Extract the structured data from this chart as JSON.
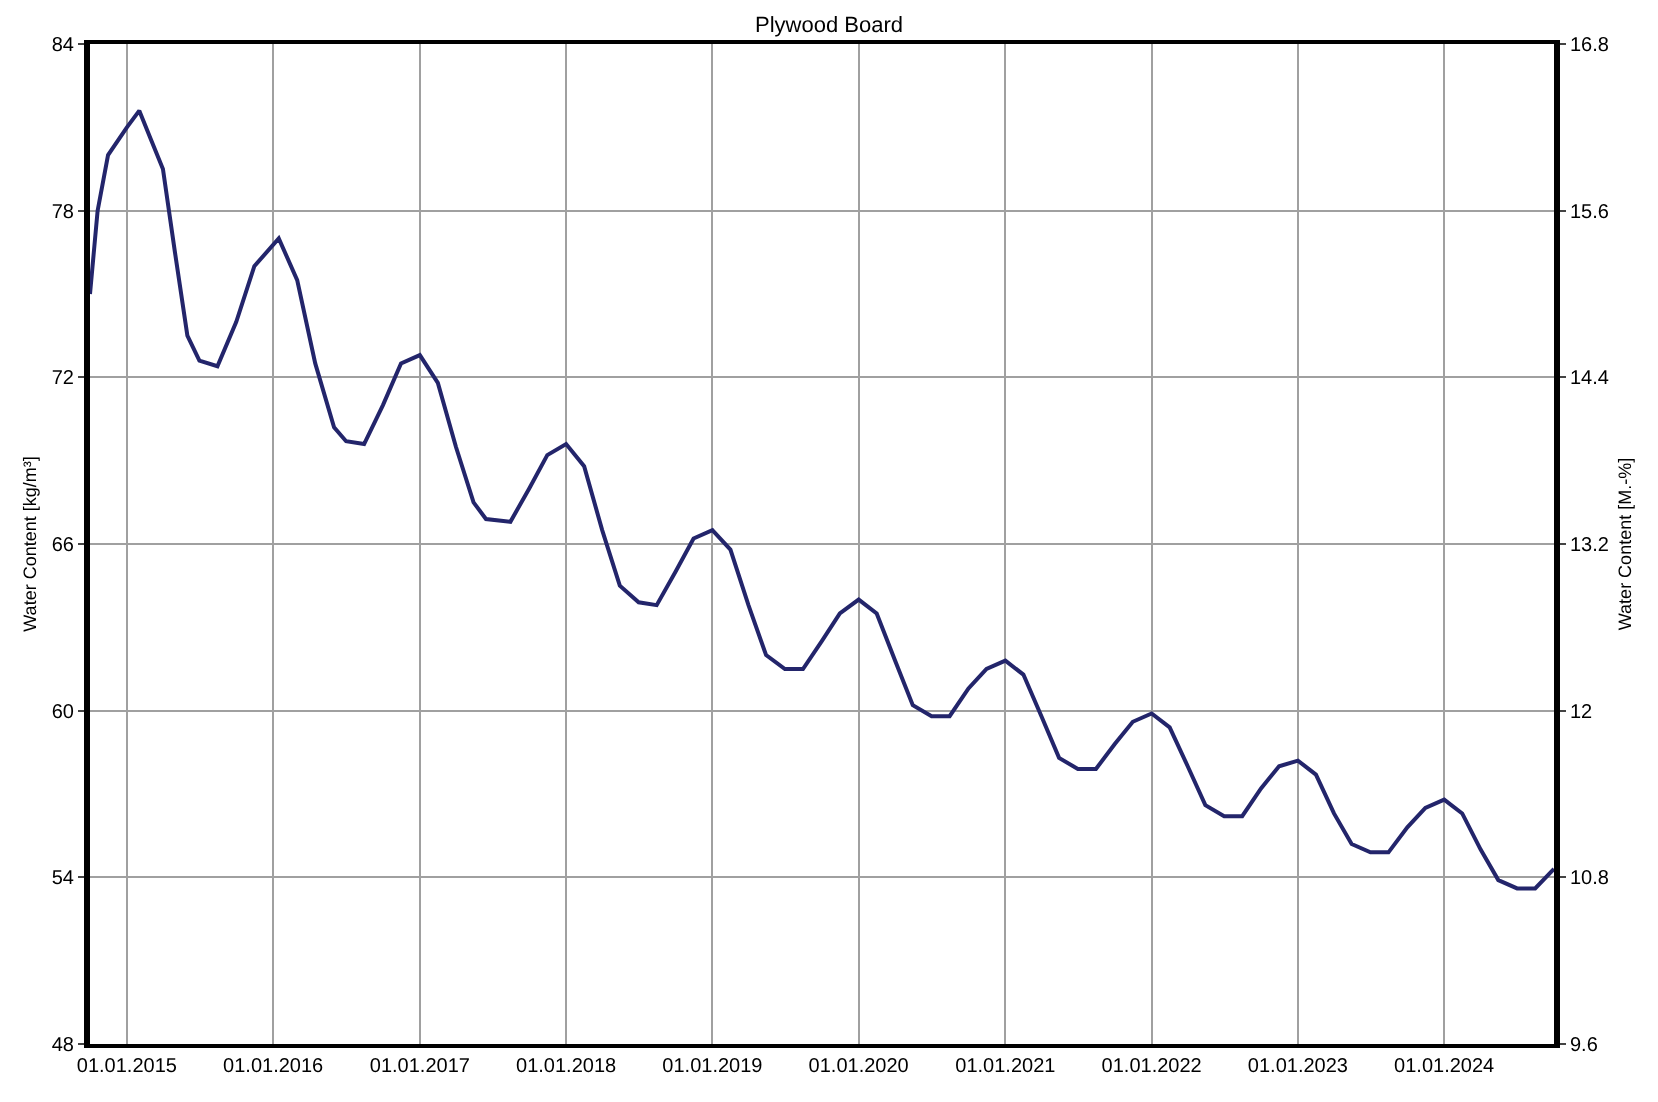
{
  "chart_data": {
    "type": "line",
    "title": "Plywood Board",
    "ylabel": "Water Content [kg/m³]",
    "y2label": "Water Content [M.-%]",
    "xlim": [
      "2014-10-01",
      "2024-10-01"
    ],
    "xticks": [
      {
        "value": "2015-01-01",
        "label": "01.01.2015"
      },
      {
        "value": "2016-01-01",
        "label": "01.01.2016"
      },
      {
        "value": "2017-01-01",
        "label": "01.01.2017"
      },
      {
        "value": "2018-01-01",
        "label": "01.01.2018"
      },
      {
        "value": "2019-01-01",
        "label": "01.01.2019"
      },
      {
        "value": "2020-01-01",
        "label": "01.01.2020"
      },
      {
        "value": "2021-01-01",
        "label": "01.01.2021"
      },
      {
        "value": "2022-01-01",
        "label": "01.01.2022"
      },
      {
        "value": "2023-01-01",
        "label": "01.01.2023"
      },
      {
        "value": "2024-01-01",
        "label": "01.01.2024"
      }
    ],
    "ylim": [
      48,
      84
    ],
    "yticks": [
      48,
      54,
      60,
      66,
      72,
      78,
      84
    ],
    "y2lim": [
      9.6,
      16.8
    ],
    "y2ticks": [
      9.6,
      10.8,
      12,
      13.2,
      14.4,
      15.6,
      16.8
    ],
    "grid": true,
    "marker": "none",
    "line_style": "solid",
    "x": [
      "2014-10-01",
      "2014-10-20",
      "2014-11-15",
      "2015-01-01",
      "2015-02-01",
      "2015-03-01",
      "2015-04-01",
      "2015-05-01",
      "2015-06-01",
      "2015-07-01",
      "2015-08-15",
      "2015-10-01",
      "2015-11-15",
      "2016-01-15",
      "2016-03-01",
      "2016-04-15",
      "2016-06-01",
      "2016-07-01",
      "2016-08-15",
      "2016-10-01",
      "2016-11-15",
      "2017-01-01",
      "2017-02-15",
      "2017-04-01",
      "2017-05-15",
      "2017-06-15",
      "2017-08-15",
      "2017-10-01",
      "2017-11-15",
      "2018-01-01",
      "2018-02-15",
      "2018-04-01",
      "2018-05-15",
      "2018-07-01",
      "2018-08-15",
      "2018-10-01",
      "2018-11-15",
      "2019-01-01",
      "2019-02-15",
      "2019-04-01",
      "2019-05-15",
      "2019-07-01",
      "2019-08-15",
      "2019-10-01",
      "2019-11-15",
      "2020-01-01",
      "2020-02-15",
      "2020-04-01",
      "2020-05-15",
      "2020-07-01",
      "2020-08-15",
      "2020-10-01",
      "2020-11-15",
      "2021-01-01",
      "2021-02-15",
      "2021-04-01",
      "2021-05-15",
      "2021-07-01",
      "2021-08-15",
      "2021-10-01",
      "2021-11-15",
      "2022-01-01",
      "2022-02-15",
      "2022-04-01",
      "2022-05-15",
      "2022-07-01",
      "2022-08-15",
      "2022-10-01",
      "2022-11-15",
      "2023-01-01",
      "2023-02-15",
      "2023-04-01",
      "2023-05-15",
      "2023-07-01",
      "2023-08-15",
      "2023-10-01",
      "2023-11-15",
      "2024-01-01",
      "2024-02-15",
      "2024-04-01",
      "2024-05-15",
      "2024-07-01",
      "2024-08-15",
      "2024-10-01"
    ],
    "series": [
      {
        "color": "#23256b",
        "values": [
          75.0,
          78.0,
          80.0,
          81.0,
          81.6,
          80.6,
          79.5,
          76.5,
          73.5,
          72.6,
          72.4,
          74.0,
          76.0,
          77.0,
          75.5,
          72.5,
          70.2,
          69.7,
          69.6,
          71.0,
          72.5,
          72.8,
          71.8,
          69.5,
          67.5,
          66.9,
          66.8,
          68.0,
          69.2,
          69.6,
          68.8,
          66.5,
          64.5,
          63.9,
          63.8,
          65.0,
          66.2,
          66.5,
          65.8,
          63.8,
          62.0,
          61.5,
          61.5,
          62.5,
          63.5,
          64.0,
          63.5,
          61.8,
          60.2,
          59.8,
          59.8,
          60.8,
          61.5,
          61.8,
          61.3,
          59.8,
          58.3,
          57.9,
          57.9,
          58.8,
          59.6,
          59.9,
          59.4,
          58.0,
          56.6,
          56.2,
          56.2,
          57.2,
          58.0,
          58.2,
          57.7,
          56.3,
          55.2,
          54.9,
          54.9,
          55.8,
          56.5,
          56.8,
          56.3,
          55.0,
          53.9,
          53.6,
          53.6,
          54.3
        ]
      }
    ]
  }
}
